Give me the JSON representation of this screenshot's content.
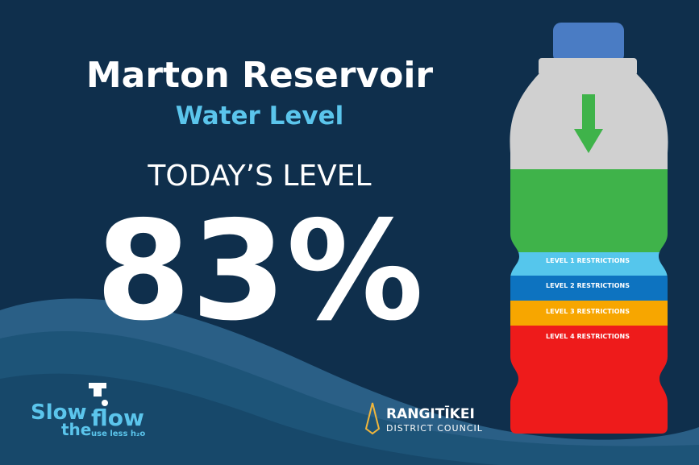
{
  "header": {
    "title": "Marton Reservoir",
    "subtitle": "Water Level"
  },
  "today": {
    "label": "TODAY’S LEVEL",
    "level": "83%"
  },
  "bottle": {
    "bands": [
      "LEVEL 1 RESTRICTIONS",
      "LEVEL 2 RESTRICTIONS",
      "LEVEL 3 RESTRICTIONS",
      "LEVEL 4 RESTRICTIONS"
    ]
  },
  "logos": {
    "campaign": {
      "line1": "Slow",
      "line2": "the",
      "line3": "flow",
      "tagline": "use less h₂o"
    },
    "council": {
      "name": "RANGITĪKEI",
      "subtitle": "DISTRICT COUNCIL"
    }
  }
}
